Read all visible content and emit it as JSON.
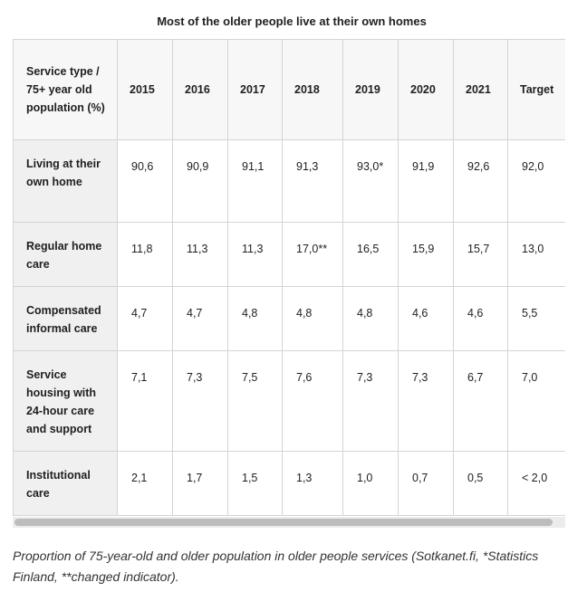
{
  "title": "Most of the older people live at their own homes",
  "table": {
    "header_label": "Service type / 75+ year old population (%)",
    "columns": [
      "2015",
      "2016",
      "2017",
      "2018",
      "2019",
      "2020",
      "2021",
      "Target"
    ],
    "rows": [
      {
        "label": "Living at their own home",
        "values": [
          "90,6",
          "90,9",
          "91,1",
          "91,3",
          "93,0*",
          "91,9",
          "92,6",
          "92,0"
        ]
      },
      {
        "label": "Regular home care",
        "values": [
          "11,8",
          "11,3",
          "11,3",
          "17,0**",
          "16,5",
          "15,9",
          "15,7",
          "13,0"
        ]
      },
      {
        "label": "Compensated informal care",
        "values": [
          "4,7",
          "4,7",
          "4,8",
          "4,8",
          "4,8",
          "4,6",
          "4,6",
          "5,5"
        ]
      },
      {
        "label": "Service housing with 24-hour care and support",
        "values": [
          "7,1",
          "7,3",
          "7,5",
          "7,6",
          "7,3",
          "7,3",
          "6,7",
          "7,0"
        ]
      },
      {
        "label": "Institutional care",
        "values": [
          "2,1",
          "1,7",
          "1,5",
          "1,3",
          "1,0",
          "0,7",
          "0,5",
          "< 2,0"
        ]
      }
    ]
  },
  "caption": "Proportion of 75-year-old and older population in older people services (Sotkanet.fi, *Statistics Finland, **changed indicator)."
}
